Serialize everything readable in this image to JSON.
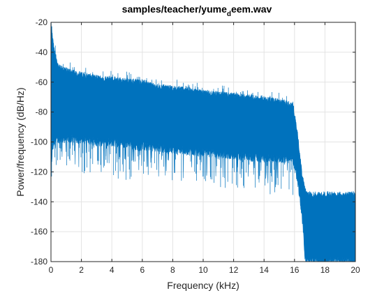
{
  "chart_data": {
    "type": "line",
    "title": "samples/teacher/yume_deem.wav",
    "title_parts": {
      "before": "samples/teacher/yume",
      "subscript": "d",
      "after": "eem.wav"
    },
    "xlabel": "Frequency (kHz)",
    "ylabel": "Power/frequency (dB/Hz)",
    "xlim": [
      0,
      20
    ],
    "ylim": [
      -180,
      -20
    ],
    "xticks": [
      0,
      2,
      4,
      6,
      8,
      10,
      12,
      14,
      16,
      18,
      20
    ],
    "yticks": [
      -180,
      -160,
      -140,
      -120,
      -100,
      -80,
      -60,
      -40,
      -20
    ],
    "grid": true,
    "series_color": "#0072BD",
    "series": [
      {
        "upper": {
          "x": [
            0,
            0.1,
            0.2,
            0.3,
            0.5,
            1,
            2,
            3,
            4,
            5,
            6,
            7,
            8,
            9,
            10,
            11,
            12,
            13,
            14,
            15,
            15.9,
            16.2,
            16.5,
            16.7,
            16.8,
            17,
            18,
            19,
            20
          ],
          "y": [
            -20,
            -30,
            -38,
            -42,
            -50,
            -52,
            -55,
            -57,
            -58,
            -59,
            -60,
            -63,
            -64,
            -65,
            -67,
            -68,
            -69,
            -70,
            -71,
            -73,
            -75,
            -95,
            -122,
            -132,
            -135,
            -135,
            -135,
            -135,
            -135
          ]
        },
        "lower": {
          "x": [
            0,
            0.1,
            0.2,
            0.5,
            1,
            2,
            3,
            4,
            5,
            6,
            7,
            8,
            9,
            10,
            11,
            12,
            13,
            14,
            15,
            15.9,
            16.2,
            16.5,
            16.7,
            16.8,
            17,
            18,
            19,
            20
          ],
          "y": [
            -120,
            -105,
            -100,
            -98,
            -98,
            -98,
            -100,
            -100,
            -102,
            -103,
            -104,
            -105,
            -106,
            -107,
            -108,
            -109,
            -110,
            -111,
            -111,
            -112,
            -125,
            -150,
            -178,
            -180,
            -180,
            -180,
            -180,
            -180
          ]
        }
      }
    ]
  }
}
